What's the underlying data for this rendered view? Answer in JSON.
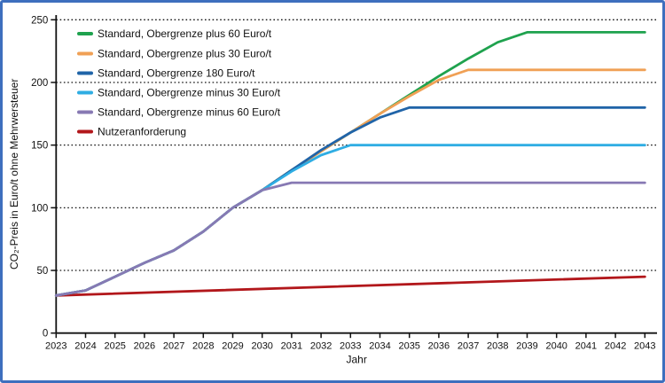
{
  "chart_data": {
    "type": "line",
    "title": "",
    "xlabel": "Jahr",
    "ylabel": "CO₂-Preis in Euro/t ohne Mehrwersteuer",
    "xlim": [
      2023,
      2043
    ],
    "ylim": [
      0,
      250
    ],
    "x_ticks": [
      2023,
      2024,
      2025,
      2026,
      2027,
      2028,
      2029,
      2030,
      2031,
      2032,
      2033,
      2034,
      2035,
      2036,
      2037,
      2038,
      2039,
      2040,
      2041,
      2042,
      2043
    ],
    "y_ticks": [
      0,
      50,
      100,
      150,
      200,
      250
    ],
    "grid": "horizontal-dotted",
    "legend_position": "top-left-inside",
    "axis_color": "#111111",
    "frame_color": "#3E6FBE",
    "series": [
      {
        "name": "Standard, Obergrenze plus 60 Euro/t",
        "color": "#1FA24E",
        "points": [
          [
            2023,
            30
          ],
          [
            2024,
            34
          ],
          [
            2025,
            45
          ],
          [
            2026,
            56
          ],
          [
            2027,
            66
          ],
          [
            2028,
            81
          ],
          [
            2029,
            100
          ],
          [
            2030,
            114
          ],
          [
            2031,
            130
          ],
          [
            2032,
            145
          ],
          [
            2033,
            160
          ],
          [
            2034,
            175
          ],
          [
            2035,
            190
          ],
          [
            2036,
            205
          ],
          [
            2037,
            219
          ],
          [
            2038,
            232
          ],
          [
            2039,
            240
          ],
          [
            2043,
            240
          ]
        ]
      },
      {
        "name": "Standard, Obergrenze plus 30 Euro/t",
        "color": "#F0A055",
        "points": [
          [
            2023,
            30
          ],
          [
            2024,
            34
          ],
          [
            2025,
            45
          ],
          [
            2026,
            56
          ],
          [
            2027,
            66
          ],
          [
            2028,
            81
          ],
          [
            2029,
            100
          ],
          [
            2030,
            114
          ],
          [
            2031,
            130
          ],
          [
            2032,
            145
          ],
          [
            2033,
            160
          ],
          [
            2034,
            175
          ],
          [
            2035,
            189
          ],
          [
            2036,
            202
          ],
          [
            2037,
            210
          ],
          [
            2043,
            210
          ]
        ]
      },
      {
        "name": "Standard, Obergrenze 180 Euro/t",
        "color": "#2064A8",
        "points": [
          [
            2023,
            30
          ],
          [
            2024,
            34
          ],
          [
            2025,
            45
          ],
          [
            2026,
            56
          ],
          [
            2027,
            66
          ],
          [
            2028,
            81
          ],
          [
            2029,
            100
          ],
          [
            2030,
            114
          ],
          [
            2031,
            130
          ],
          [
            2032,
            146
          ],
          [
            2033,
            160
          ],
          [
            2034,
            172
          ],
          [
            2035,
            180
          ],
          [
            2043,
            180
          ]
        ]
      },
      {
        "name": "Standard, Obergrenze minus 30 Euro/t",
        "color": "#2FADE3",
        "points": [
          [
            2023,
            30
          ],
          [
            2024,
            34
          ],
          [
            2025,
            45
          ],
          [
            2026,
            56
          ],
          [
            2027,
            66
          ],
          [
            2028,
            81
          ],
          [
            2029,
            100
          ],
          [
            2030,
            114
          ],
          [
            2031,
            129
          ],
          [
            2032,
            142
          ],
          [
            2033,
            150
          ],
          [
            2043,
            150
          ]
        ]
      },
      {
        "name": "Standard, Obergrenze minus 60 Euro/t",
        "color": "#8779B3",
        "points": [
          [
            2023,
            30
          ],
          [
            2024,
            34
          ],
          [
            2025,
            45
          ],
          [
            2026,
            56
          ],
          [
            2027,
            66
          ],
          [
            2028,
            81
          ],
          [
            2029,
            100
          ],
          [
            2030,
            114
          ],
          [
            2031,
            120
          ],
          [
            2043,
            120
          ]
        ]
      },
      {
        "name": "Nutzeranforderung",
        "color": "#B2171B",
        "points": [
          [
            2023,
            30
          ],
          [
            2043,
            45
          ]
        ]
      }
    ],
    "draw_order": [
      5,
      0,
      1,
      2,
      3,
      4
    ]
  }
}
